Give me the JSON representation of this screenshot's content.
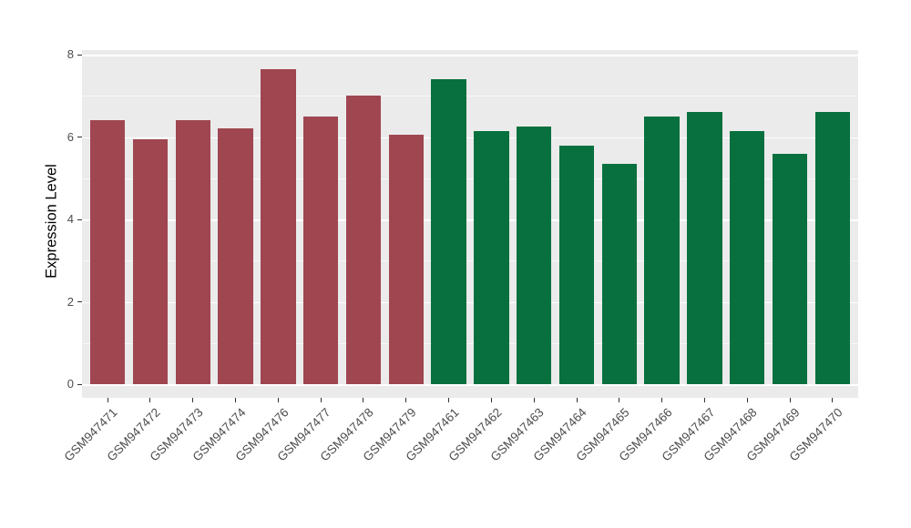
{
  "chart_data": {
    "type": "bar",
    "title": "",
    "xlabel": "",
    "ylabel": "Expression Level",
    "ylim": [
      0,
      8
    ],
    "yticks": [
      0,
      2,
      4,
      6,
      8
    ],
    "yticks_minor": [
      1,
      3,
      5,
      7
    ],
    "grid": true,
    "legend": false,
    "panel_background": "#EBEBEB",
    "gridline_color": "#FFFFFF",
    "categories": [
      "GSM947471",
      "GSM947472",
      "GSM947473",
      "GSM947474",
      "GSM947476",
      "GSM947477",
      "GSM947478",
      "GSM947479",
      "GSM947461",
      "GSM947462",
      "GSM947463",
      "GSM947464",
      "GSM947465",
      "GSM947466",
      "GSM947467",
      "GSM947468",
      "GSM947469",
      "GSM947470"
    ],
    "values": [
      6.4,
      5.95,
      6.4,
      6.2,
      7.65,
      6.5,
      7.0,
      6.05,
      7.4,
      6.15,
      6.25,
      5.8,
      5.35,
      6.5,
      6.6,
      6.15,
      5.6,
      6.6
    ],
    "groups": [
      "group1",
      "group1",
      "group1",
      "group1",
      "group1",
      "group1",
      "group1",
      "group1",
      "group2",
      "group2",
      "group2",
      "group2",
      "group2",
      "group2",
      "group2",
      "group2",
      "group2",
      "group2"
    ],
    "group_colors": {
      "group1": "#A04651",
      "group2": "#07703E"
    }
  }
}
